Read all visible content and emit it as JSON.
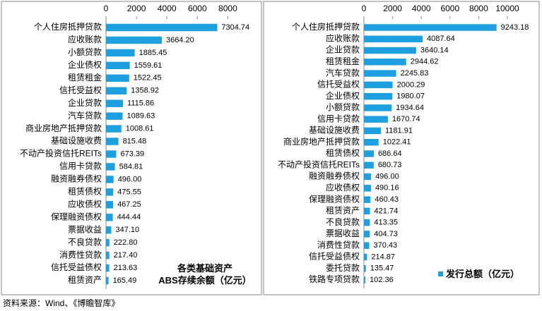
{
  "chart_data": [
    {
      "type": "bar",
      "orientation": "horizontal",
      "categories": [
        "个人住房抵押贷款",
        "应收账款",
        "小额贷款",
        "企业债权",
        "租赁租金",
        "信托受益权",
        "企业贷款",
        "汽车贷款",
        "商业房地产抵押贷款",
        "基础设施收费",
        "不动产投资信托REITs",
        "信用卡贷款",
        "融资融券债权",
        "租赁债权",
        "应收债权",
        "保理融资债权",
        "票据收益",
        "不良贷款",
        "消费性贷款",
        "信托受益债权",
        "租赁资产"
      ],
      "series": [
        {
          "name": "各类基础资产\nABS存续余额（亿元）",
          "color": "#1e9fe0",
          "values": [
            7304.74,
            3664.2,
            1885.45,
            1559.61,
            1522.45,
            1358.92,
            1115.86,
            1089.63,
            1008.61,
            815.48,
            673.39,
            584.81,
            496,
            475.55,
            467.25,
            444.44,
            347.1,
            222.8,
            217.4,
            213.63,
            165.49
          ],
          "value_labels": [
            "7304.74",
            "3664.20",
            "1885.45",
            "1559.61",
            "1522.45",
            "1358.92",
            "1115.86",
            "1089.63",
            "1008.61",
            "815.48",
            "673.39",
            "584.81",
            "496.00",
            "475.55",
            "467.25",
            "444.44",
            "347.10",
            "222.80",
            "217.40",
            "213.63",
            "165.49"
          ]
        }
      ],
      "xlim": [
        0,
        10000
      ],
      "xticks": [
        0,
        2000,
        4000,
        6000,
        8000
      ],
      "legend": "bottom-right",
      "legend_marker": false
    },
    {
      "type": "bar",
      "orientation": "horizontal",
      "categories": [
        "个人住房抵押贷款",
        "应收账款",
        "企业贷款",
        "租赁租金",
        "汽车贷款",
        "信托受益权",
        "企业债权",
        "小额贷款",
        "信用卡贷款",
        "基础设施收费",
        "商业房地产抵押贷款",
        "租赁债权",
        "不动产投资信托REITs",
        "融资融券债权",
        "应收债权",
        "保理融资债权",
        "租赁资产",
        "不良贷款",
        "票据收益",
        "消费性贷款",
        "信托受益债权",
        "委托贷款",
        "铁路专项贷款"
      ],
      "series": [
        {
          "name": "发行总额（亿元）",
          "color": "#1e9fe0",
          "values": [
            9243.18,
            4087.64,
            3640.14,
            2944.62,
            2245.83,
            2000.29,
            1980.07,
            1934.64,
            1670.74,
            1181.91,
            1022.41,
            686.64,
            680.73,
            496,
            490.16,
            460.43,
            421.74,
            413.35,
            404.73,
            370.43,
            214.87,
            135.47,
            102.36
          ],
          "value_labels": [
            "9243.18",
            "4087.64",
            "3640.14",
            "2944.62",
            "2245.83",
            "2000.29",
            "1980.07",
            "1934.64",
            "1670.74",
            "1181.91",
            "1022.41",
            "686.64",
            "680.73",
            "496.00",
            "490.16",
            "460.43",
            "421.74",
            "413.35",
            "404.73",
            "370.43",
            "214.87",
            "135.47",
            "102.36"
          ]
        }
      ],
      "xlim": [
        0,
        12000
      ],
      "xticks": [
        0,
        2000,
        4000,
        6000,
        8000,
        10000
      ],
      "legend": "bottom-right",
      "legend_marker": true
    }
  ],
  "source": "资料来源：Wind、《博瞻智库》"
}
